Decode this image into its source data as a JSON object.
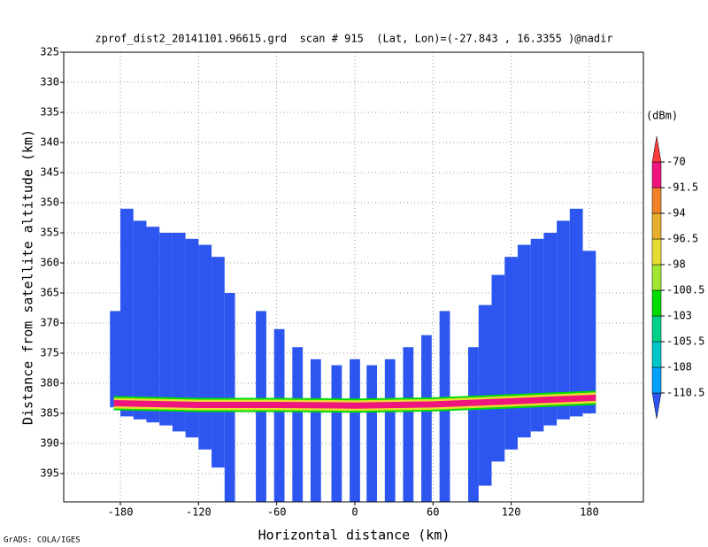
{
  "chart_data": {
    "type": "heatmap",
    "title": "zprof_dist2_20141101.96615.grd  scan # 915  (Lat, Lon)=(-27.843 , 16.3355 )@nadir",
    "x_label": "Horizontal distance (km)",
    "y_label": "Distance from satellite altitude (km)",
    "footer": "GrADS: COLA/IGES",
    "xlim": [
      -223.5,
      221.5
    ],
    "xticks": [
      -180,
      -120,
      -60,
      0,
      60,
      120,
      180
    ],
    "ylim": [
      325,
      399.7
    ],
    "yticks": [
      325,
      330,
      335,
      340,
      345,
      350,
      355,
      360,
      365,
      370,
      375,
      380,
      385,
      390,
      395
    ],
    "y_inverted": true,
    "grid": true,
    "swath": {
      "color": "#2d55f0",
      "x_left": [
        -188,
        -180,
        -170,
        -160,
        -150,
        -140,
        -130,
        -120,
        -110,
        -100,
        -76,
        -62,
        -48,
        -34,
        -18,
        -4,
        9,
        23,
        37,
        51,
        65,
        87,
        95,
        105,
        115,
        125,
        135,
        145,
        155,
        165,
        175
      ],
      "x_right": [
        -180,
        -170,
        -160,
        -150,
        -140,
        -130,
        -120,
        -110,
        -100,
        -92,
        -68,
        -54,
        -40,
        -26,
        -10,
        4,
        17,
        31,
        45,
        59,
        73,
        95,
        105,
        115,
        125,
        135,
        145,
        155,
        165,
        175,
        185
      ],
      "top": [
        368,
        351,
        353,
        354,
        355,
        355,
        356,
        357,
        359,
        365,
        368,
        371,
        374,
        376,
        377,
        376,
        377,
        376,
        374,
        372,
        368,
        374,
        367,
        362,
        359,
        357,
        356,
        355,
        353,
        351,
        358
      ],
      "bottom": [
        384,
        385.5,
        386,
        386.5,
        387,
        388,
        389,
        391,
        394,
        399.7,
        399.7,
        399.7,
        399.7,
        399.7,
        399.7,
        399.7,
        399.7,
        399.7,
        399.7,
        399.7,
        399.7,
        399.7,
        397,
        393,
        391,
        389,
        388,
        387,
        386,
        385.5,
        385
      ]
    },
    "surface": {
      "color": "#f0147f",
      "x": [
        -185,
        -120,
        -60,
        0,
        60,
        120,
        185
      ],
      "altitude": [
        383.3,
        383.6,
        383.6,
        383.7,
        383.5,
        383.0,
        382.4
      ]
    },
    "colorbar": {
      "label": "(dBm)",
      "levels": [
        -110.5,
        -108,
        -105.5,
        -103,
        -100.5,
        -98,
        -96.5,
        -94,
        -91.5,
        -70
      ],
      "colors": [
        "#2d55f0",
        "#00a0ff",
        "#00c8c8",
        "#00d28c",
        "#00dc00",
        "#a0e632",
        "#e6dc32",
        "#e6af2d",
        "#f08228",
        "#f0147f",
        "#fa3c3c"
      ]
    }
  }
}
